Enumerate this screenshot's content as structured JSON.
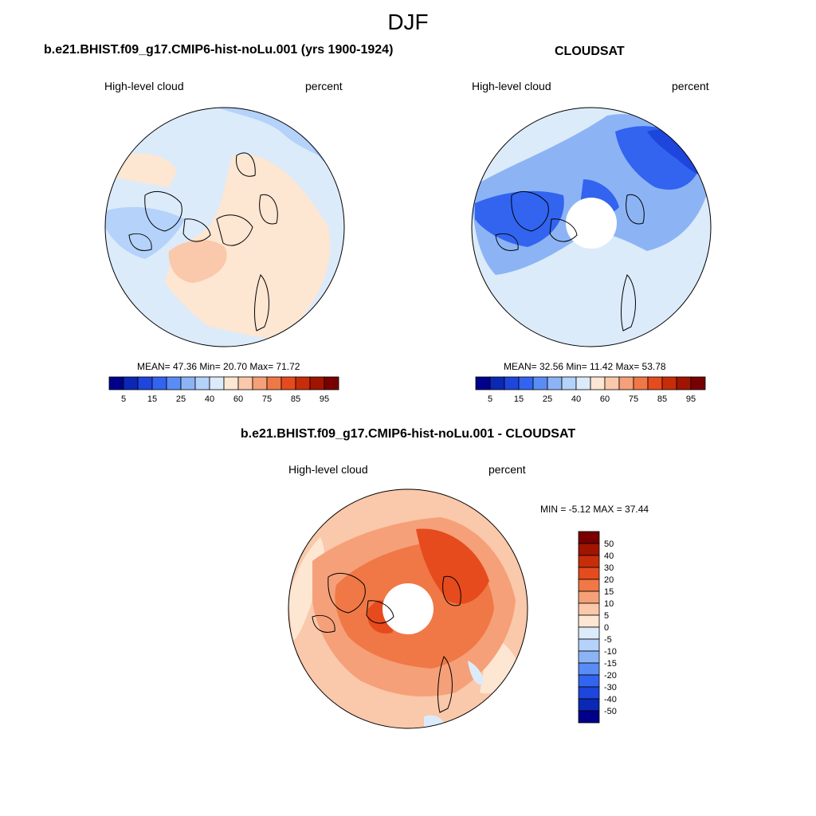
{
  "figure": {
    "season": "DJF"
  },
  "panel_model": {
    "title": "b.e21.BHIST.f09_g17.CMIP6-hist-noLu.001 (yrs 1900-1924)",
    "left_label": "High-level cloud",
    "right_label": "percent",
    "stats": "MEAN=  47.36  Min=  20.70  Max=  71.72"
  },
  "panel_obs": {
    "title": "CLOUDSAT",
    "left_label": "High-level cloud",
    "right_label": "percent",
    "stats": "MEAN=  32.56  Min=  11.42  Max=  53.78"
  },
  "panel_diff": {
    "title": "b.e21.BHIST.f09_g17.CMIP6-hist-noLu.001 - CLOUDSAT",
    "left_label": "High-level cloud",
    "right_label": "percent",
    "stats": "MIN =  -5.12 MAX =  37.44"
  },
  "colorbar_abs": {
    "colors": [
      "#00008b",
      "#0a28b4",
      "#1e46dc",
      "#3264f0",
      "#5a8cf5",
      "#8cb4f5",
      "#b4d2fa",
      "#dcebfa",
      "#fde6d2",
      "#fac8aa",
      "#f5a078",
      "#f07846",
      "#e64b1e",
      "#c82d0a",
      "#a01400",
      "#780000"
    ],
    "tick_labels": [
      "5",
      "15",
      "25",
      "40",
      "60",
      "75",
      "85",
      "95"
    ]
  },
  "colorbar_diff": {
    "colors": [
      "#00008b",
      "#0a28b4",
      "#1e46dc",
      "#3264f0",
      "#5a8cf5",
      "#8cb4f5",
      "#b4d2fa",
      "#dcebfa",
      "#fde6d2",
      "#fac8aa",
      "#f5a078",
      "#f07846",
      "#e64b1e",
      "#c82d0a",
      "#a01400",
      "#780000"
    ],
    "tick_labels": [
      "50",
      "40",
      "30",
      "20",
      "15",
      "10",
      "5",
      "0",
      "-5",
      "-10",
      "-15",
      "-20",
      "-30",
      "-40",
      "-50"
    ]
  }
}
